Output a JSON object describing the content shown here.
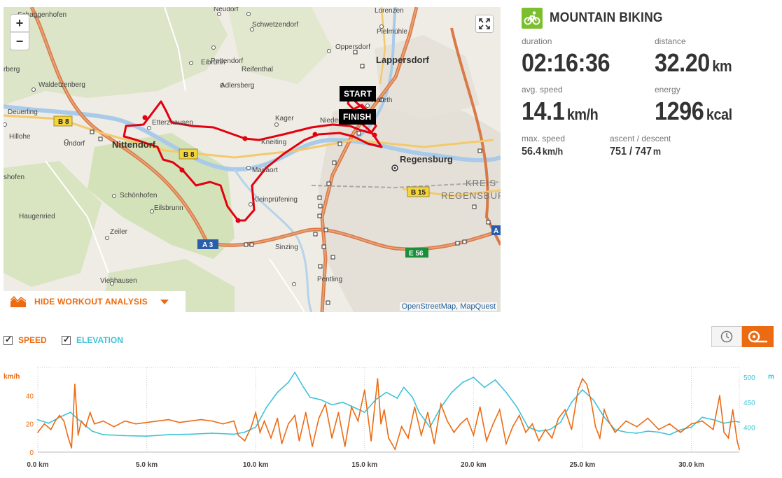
{
  "map": {
    "zoom_in": "+",
    "zoom_out": "−",
    "fullscreen_icon": "expand-icon",
    "start_label": "START",
    "finish_label": "FINISH",
    "attribution": "OpenStreetMap, MapQuest",
    "places": [
      {
        "name": "Schaggenhofen",
        "bold": false
      },
      {
        "name": "Neudorf",
        "bold": false
      },
      {
        "name": "Lorenzen",
        "bold": false
      },
      {
        "name": "Schwetzendorf",
        "bold": false
      },
      {
        "name": "Pielmühle",
        "bold": false
      },
      {
        "name": "Pettendorf",
        "bold": false
      },
      {
        "name": "Oppersdorf",
        "bold": false
      },
      {
        "name": "Lappersdorf",
        "bold": true
      },
      {
        "name": "Eibrunn",
        "bold": false
      },
      {
        "name": "Reifenthal",
        "bold": false
      },
      {
        "name": "Waldetzenberg",
        "bold": false
      },
      {
        "name": "Adlersberg",
        "bold": false
      },
      {
        "name": "Kareth",
        "bold": false
      },
      {
        "name": "Deuerling",
        "bold": false
      },
      {
        "name": "Etterzhausen",
        "bold": false
      },
      {
        "name": "Kager",
        "bold": false
      },
      {
        "name": "Niedermünster",
        "bold": false
      },
      {
        "name": "Hillohe",
        "bold": false
      },
      {
        "name": "Undorf",
        "bold": false
      },
      {
        "name": "Nittendorf",
        "bold": true
      },
      {
        "name": "Kneiting",
        "bold": false
      },
      {
        "name": "Regensburg",
        "bold": true
      },
      {
        "name": "Mariaort",
        "bold": false
      },
      {
        "name": "KREIS",
        "bold": false
      },
      {
        "name": "REGENSBURG",
        "bold": false
      },
      {
        "name": "Schönhofen",
        "bold": false
      },
      {
        "name": "Kleinprüfening",
        "bold": false
      },
      {
        "name": "Eilsbrunn",
        "bold": false
      },
      {
        "name": "Haugenried",
        "bold": false
      },
      {
        "name": "Zeiler",
        "bold": false
      },
      {
        "name": "Sinzing",
        "bold": false
      },
      {
        "name": "Viehhausen",
        "bold": false
      },
      {
        "name": "Pentling",
        "bold": false
      },
      {
        "name": "rberg",
        "bold": false
      },
      {
        "name": "shofen",
        "bold": false
      }
    ],
    "road_badges": [
      {
        "text": "B 8",
        "color": "#f5d33a"
      },
      {
        "text": "B 8",
        "color": "#f5d33a"
      },
      {
        "text": "B 15",
        "color": "#f5d33a"
      },
      {
        "text": "A 3",
        "color": "#2a5eaa"
      },
      {
        "text": "E 56",
        "color": "#1c8f3b"
      },
      {
        "text": "A",
        "color": "#2a5eaa"
      }
    ]
  },
  "analysis_toggle": {
    "label": "HIDE WORKOUT ANALYSIS",
    "icon": "chart-area-icon",
    "caret_icon": "caret-down-icon"
  },
  "sport": {
    "name": "MOUNTAIN BIKING",
    "icon": "bike-icon",
    "color": "#7cbf2e"
  },
  "stats": {
    "duration": {
      "label": "duration",
      "value": "02:16:36",
      "unit": ""
    },
    "distance": {
      "label": "distance",
      "value": "32.20",
      "unit": "km"
    },
    "avg_speed": {
      "label": "avg. speed",
      "value": "14.1",
      "unit": "km/h"
    },
    "energy": {
      "label": "energy",
      "value": "1296",
      "unit": "kcal"
    },
    "max_speed": {
      "label": "max. speed",
      "value": "56.4",
      "unit": "km/h"
    },
    "ascent_descent": {
      "label": "ascent / descent",
      "value": "751 / 747",
      "unit": "m"
    }
  },
  "chart_controls": {
    "speed_label": "SPEED",
    "elevation_label": "ELEVATION",
    "speed_checked": true,
    "elevation_checked": true,
    "time_icon": "clock-icon",
    "distance_icon": "distance-icon",
    "active_mode": "distance"
  },
  "colors": {
    "speed": "#ec6b12",
    "elevation": "#3fc3d8",
    "accent": "#ec6b12",
    "route": "#e3000f"
  },
  "chart_data": {
    "type": "line",
    "x_unit": "km",
    "x_tick_labels": [
      "0.0 km",
      "5.0 km",
      "10.0 km",
      "15.0 km",
      "20.0 km",
      "25.0 km",
      "30.0 km"
    ],
    "x_ticks": [
      0,
      5,
      10,
      15,
      20,
      25,
      30
    ],
    "xlim": [
      0,
      32.2
    ],
    "y_left": {
      "unit_label": "km/h",
      "ticks": [
        0,
        20,
        40
      ],
      "ylim": [
        0,
        60
      ]
    },
    "y_right": {
      "unit_label": "m",
      "ticks": [
        400,
        450,
        500
      ],
      "ylim": [
        350,
        520
      ]
    },
    "grid": "vertical dotted",
    "series": [
      {
        "name": "SPEED",
        "axis": "left",
        "x": [
          0,
          0.3,
          0.6,
          0.8,
          1.0,
          1.2,
          1.4,
          1.55,
          1.7,
          1.85,
          2.0,
          2.2,
          2.4,
          2.6,
          3.0,
          3.5,
          4.0,
          4.5,
          5.0,
          5.5,
          6.0,
          6.5,
          7.0,
          7.5,
          8.0,
          8.5,
          9.0,
          9.2,
          9.5,
          9.8,
          10.0,
          10.2,
          10.4,
          10.7,
          11.0,
          11.2,
          11.5,
          11.8,
          12.0,
          12.3,
          12.6,
          12.9,
          13.2,
          13.5,
          13.8,
          14.1,
          14.4,
          14.7,
          15.0,
          15.3,
          15.6,
          15.75,
          15.9,
          16.1,
          16.4,
          16.7,
          17.0,
          17.3,
          17.6,
          17.9,
          18.2,
          18.5,
          18.8,
          19.1,
          19.4,
          19.7,
          20.0,
          20.3,
          20.6,
          20.9,
          21.2,
          21.5,
          21.8,
          22.1,
          22.4,
          22.7,
          23.0,
          23.3,
          23.6,
          23.9,
          24.2,
          24.5,
          24.8,
          25.0,
          25.2,
          25.4,
          25.6,
          25.8,
          26.0,
          26.2,
          26.5,
          27.0,
          27.5,
          28.0,
          28.5,
          29.0,
          29.5,
          30.0,
          30.5,
          31.0,
          31.3,
          31.5,
          31.7,
          31.9,
          32.1,
          32.2
        ],
        "values": [
          14,
          20,
          16,
          22,
          26,
          22,
          10,
          3,
          48,
          12,
          22,
          18,
          28,
          20,
          22,
          18,
          22,
          20,
          21,
          22,
          23,
          21,
          22,
          23,
          22,
          20,
          22,
          12,
          8,
          18,
          28,
          14,
          22,
          10,
          24,
          6,
          20,
          26,
          8,
          28,
          4,
          24,
          34,
          10,
          28,
          4,
          32,
          22,
          44,
          8,
          52,
          20,
          30,
          10,
          2,
          18,
          10,
          32,
          12,
          28,
          6,
          34,
          22,
          14,
          20,
          24,
          12,
          32,
          8,
          20,
          30,
          6,
          18,
          26,
          14,
          20,
          8,
          16,
          10,
          24,
          30,
          16,
          44,
          52,
          48,
          36,
          18,
          10,
          30,
          22,
          14,
          22,
          18,
          24,
          16,
          20,
          14,
          20,
          22,
          16,
          40,
          14,
          10,
          30,
          8,
          2
        ]
      },
      {
        "name": "ELEVATION",
        "axis": "right",
        "x": [
          0,
          0.5,
          1.0,
          1.5,
          2.0,
          2.5,
          3.0,
          4.0,
          5.0,
          6.0,
          7.0,
          8.0,
          9.0,
          9.5,
          10.0,
          10.5,
          11.0,
          11.5,
          11.8,
          12.2,
          12.5,
          13.0,
          13.5,
          14.0,
          14.5,
          15.0,
          15.5,
          16.0,
          16.5,
          16.8,
          17.2,
          17.5,
          18.0,
          18.5,
          19.0,
          19.5,
          20.0,
          20.5,
          21.0,
          21.5,
          22.0,
          22.5,
          23.0,
          23.5,
          24.0,
          24.5,
          25.0,
          25.5,
          26.0,
          26.5,
          27.0,
          27.5,
          28.0,
          28.5,
          29.0,
          29.5,
          30.0,
          30.5,
          31.0,
          31.5,
          32.0,
          32.2
        ],
        "values": [
          415,
          408,
          420,
          430,
          410,
          392,
          385,
          383,
          382,
          385,
          386,
          388,
          386,
          390,
          400,
          440,
          470,
          490,
          510,
          480,
          460,
          455,
          445,
          450,
          440,
          430,
          455,
          470,
          458,
          480,
          460,
          430,
          400,
          440,
          470,
          490,
          500,
          480,
          495,
          470,
          440,
          400,
          392,
          395,
          410,
          450,
          475,
          455,
          420,
          395,
          390,
          388,
          392,
          390,
          385,
          395,
          400,
          420,
          415,
          408,
          412,
          410
        ]
      }
    ]
  }
}
